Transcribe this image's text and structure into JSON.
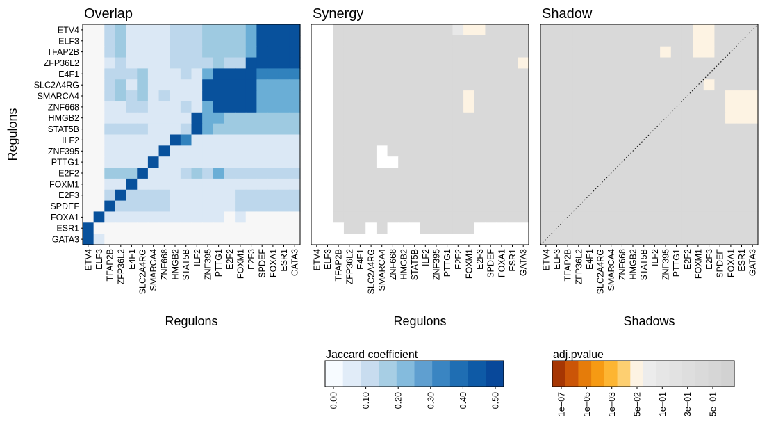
{
  "chart_data": {
    "type": "heatmap",
    "regulons": [
      "ETV4",
      "ELF3",
      "TFAP2B",
      "ZFP36L2",
      "E4F1",
      "SLC2A4RG",
      "SMARCA4",
      "ZNF668",
      "HMGB2",
      "STAT5B",
      "ILF2",
      "ZNF395",
      "PTTG1",
      "E2F2",
      "FOXM1",
      "E2F3",
      "SPDEF",
      "FOXA1",
      "ESR1",
      "GATA3"
    ],
    "panels": [
      {
        "title": "Overlap",
        "xlabel": "Regulons",
        "ylabel": "Regulons",
        "kind": "jaccard"
      },
      {
        "title": "Synergy",
        "xlabel": "Regulons",
        "ylabel": "",
        "kind": "pvalue"
      },
      {
        "title": "Shadow",
        "xlabel": "Shadows",
        "ylabel": "",
        "kind": "pvalue",
        "diagonal": "dotted"
      }
    ],
    "jaccard_rows_top_to_bottom": [
      "00231111222333346666",
      "00231111222333346666",
      "00231111222333346666",
      "00121111222232266666",
      "00222311121466665555",
      "00231311111666664444",
      "00232312111666664444",
      "00112211121466664444",
      "00111111116443333333",
      "00222211126433333333",
      "00111111651111111111",
      "00111116111111111111",
      "00111161111111111111",
      "00333611123242222222",
      "00116111111111111111",
      "00262222111111222222",
      "00622222111111222222",
      "06111111111110100000",
      "60000000000000000000",
      "61000000000000000000"
    ],
    "synergy_rows_top_to_bottom": [
      "00111111111112331111",
      "00111111111111111111",
      "00111111111111111111",
      "00111111111111111113",
      "00111111111111111111",
      "00111111111111111111",
      "00111111111111311111",
      "00111111111111311111",
      "00111111111111111111",
      "00111111111111111111",
      "00111111111111111111",
      "00111101111111111111",
      "00111100111111111111",
      "00111111111111111111",
      "00111111111111111111",
      "00111111111111111111",
      "00111111111111111111",
      "00111111111111111111",
      "00011010001111100000",
      "00000000000000000000"
    ],
    "shadow_rows_top_to_bottom": [
      "11111111111111331111",
      "11111111111111331111",
      "11111111111311331111",
      "11111111111111111111",
      "11111111111111111111",
      "11111111111111131111",
      "11111111111111111333",
      "11111111111111111333",
      "11111111111111111333",
      "11111111111111111111",
      "11111111111111111111",
      "11111111111111111111",
      "11111111111111111111",
      "11111111111111111111",
      "11111111111111111111",
      "11111111111111111111",
      "11111111111111111111",
      "11111111111111111111",
      "11111111111111111111",
      "11111111111111111111"
    ],
    "legends": [
      {
        "title": "Jaccard coefficient",
        "ticks": [
          "0.00",
          "0.10",
          "0.20",
          "0.30",
          "0.40",
          "0.50"
        ],
        "colors": [
          "#f7fbff",
          "#e1ecf8",
          "#c8dcef",
          "#a7cee4",
          "#84bbdd",
          "#5f9fd0",
          "#3a85c2",
          "#1f6eb3",
          "#0e5aa6",
          "#08489a"
        ]
      },
      {
        "title": "adj.pvalue",
        "ticks": [
          "1e−07",
          "1e−05",
          "1e−03",
          "5e−02",
          "1e−01",
          "3e−01",
          "5e−01"
        ],
        "colors": [
          "#a63603",
          "#cb5507",
          "#e57c0a",
          "#f69a13",
          "#fdb532",
          "#fdcf71",
          "#fdf3e3",
          "#ececec",
          "#e6e6e6",
          "#e2e2e2",
          "#dedede",
          "#dadada",
          "#d6d6d6",
          "#d2d2d2"
        ]
      }
    ],
    "cell_colors": {
      "jaccard": [
        "#f7f7f7",
        "#dbe8f5",
        "#bdd7ec",
        "#9ecae1",
        "#6aaed6",
        "#3182bd",
        "#08519c"
      ],
      "pvalue": [
        "#ffffff",
        "#d9d9d9",
        "#e8e8e8",
        "#fdf3e3"
      ]
    }
  }
}
